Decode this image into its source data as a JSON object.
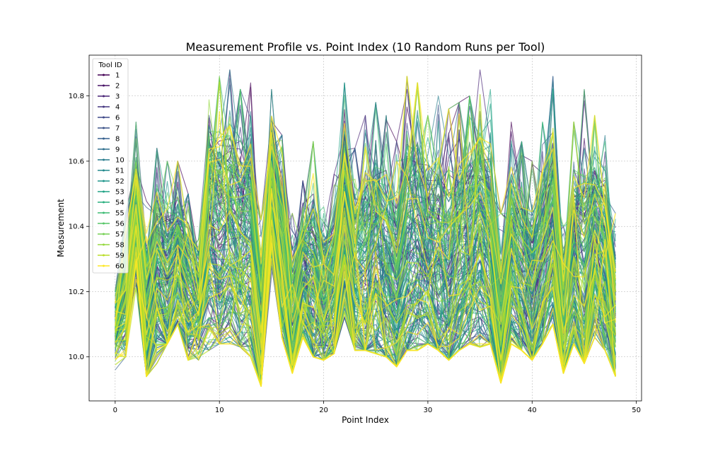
{
  "chart_data": {
    "type": "line",
    "title": "Measurement Profile vs. Point Index (10 Random Runs per Tool)",
    "xlabel": "Point Index",
    "ylabel": "Measurement",
    "xlim": [
      -2.5,
      50.5
    ],
    "ylim": [
      9.865,
      10.925
    ],
    "xticks": [
      0,
      10,
      20,
      30,
      40,
      50
    ],
    "yticks": [
      10.0,
      10.2,
      10.4,
      10.6,
      10.8
    ],
    "grid": true,
    "colormap": "viridis",
    "points_per_run": 49,
    "runs_per_tool": 10,
    "legend": {
      "title": "Tool ID",
      "placement": "upper left",
      "entries": [
        "1",
        "2",
        "3",
        "4",
        "6",
        "7",
        "8",
        "9",
        "10",
        "51",
        "52",
        "53",
        "54",
        "55",
        "56",
        "57",
        "58",
        "59",
        "60"
      ]
    },
    "series_colors": [
      "#440154",
      "#481467",
      "#482576",
      "#453781",
      "#3f4889",
      "#3d5489",
      "#355f8d",
      "#2e6f8e",
      "#287d8e",
      "#238a8d",
      "#1f968b",
      "#20a386",
      "#29af7f",
      "#3dbc74",
      "#56c667",
      "#75d054",
      "#95d840",
      "#bade28",
      "#fde725"
    ],
    "baseline_profile": [
      10.08,
      10.16,
      10.4,
      10.06,
      10.2,
      10.14,
      10.24,
      10.16,
      10.14,
      10.32,
      10.3,
      10.32,
      10.28,
      10.28,
      10.04,
      10.48,
      10.26,
      10.02,
      10.2,
      10.14,
      10.1,
      10.16,
      10.38,
      10.18,
      10.14,
      10.2,
      10.16,
      10.1,
      10.22,
      10.24,
      10.2,
      10.16,
      10.14,
      10.22,
      10.26,
      10.3,
      10.24,
      10.02,
      10.24,
      10.18,
      10.1,
      10.2,
      10.3,
      10.06,
      10.2,
      10.1,
      10.3,
      10.22,
      10.06
    ],
    "profile_range": {
      "min": [
        9.96,
        10.0,
        10.1,
        9.94,
        9.98,
        10.04,
        10.1,
        9.99,
        9.99,
        10.02,
        10.04,
        10.04,
        10.03,
        10.0,
        9.91,
        10.08,
        10.06,
        9.95,
        10.06,
        10.0,
        9.99,
        10.01,
        10.12,
        10.02,
        10.02,
        10.01,
        10.0,
        9.97,
        10.02,
        10.02,
        10.04,
        10.02,
        9.99,
        10.02,
        10.04,
        10.03,
        10.04,
        9.92,
        10.04,
        10.02,
        9.99,
        10.04,
        10.1,
        9.95,
        10.04,
        9.98,
        10.06,
        10.02,
        9.94
      ],
      "max": [
        10.2,
        10.44,
        10.72,
        10.48,
        10.64,
        10.6,
        10.6,
        10.5,
        10.36,
        10.88,
        10.86,
        10.88,
        10.82,
        10.84,
        10.42,
        10.82,
        10.68,
        10.44,
        10.54,
        10.66,
        10.46,
        10.56,
        10.84,
        10.64,
        10.74,
        10.78,
        10.74,
        10.66,
        10.86,
        10.84,
        10.74,
        10.8,
        10.76,
        10.78,
        10.8,
        10.88,
        10.82,
        10.44,
        10.72,
        10.66,
        10.6,
        10.72,
        10.86,
        10.4,
        10.72,
        10.82,
        10.74,
        10.7,
        10.44
      ]
    }
  }
}
